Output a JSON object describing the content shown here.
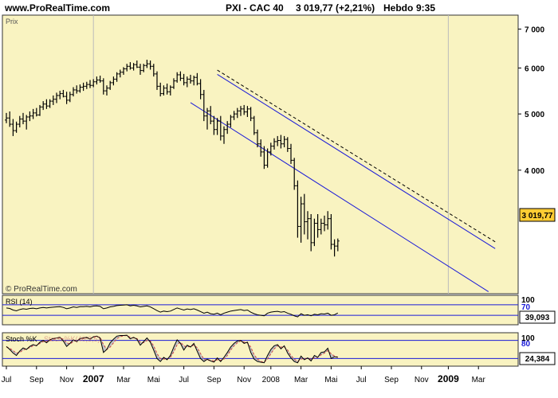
{
  "header": {
    "site": "www.ProRealTime.com",
    "instrument": "PXI - CAC 40",
    "last_change": "3 019,77 (+2,21%)",
    "period": "Hebdo",
    "time": "9:35"
  },
  "main_panel": {
    "label": "Prix",
    "watermark": "© ProRealTime.com",
    "price_tag": "3 019,77"
  },
  "rsi_panel": {
    "label": "RSI (14)",
    "level_high": "70",
    "top_tick": "100",
    "value_tag": "39,093"
  },
  "stoch_panel": {
    "label": "Stoch %K",
    "legend_faint": "Stoch %K(40,3,5)",
    "level_high": "80",
    "top_tick": "100",
    "value_tag": "24,384"
  },
  "colors": {
    "panel_bg": "#f9f3c1",
    "bar": "#000000",
    "channel": "#1a1ad8",
    "price_tag_bg": "#ffcc33",
    "stoch_k": "#000000",
    "stoch_d": "#cc4444",
    "stoch_fill": "#9aa8cc"
  },
  "chart_data": {
    "type": "ohlc-bar",
    "title": "PXI - CAC 40",
    "yscale": "log",
    "y_ticks": [
      "7 000",
      "6 000",
      "5 000",
      "4 000"
    ],
    "y_tick_values": [
      7000,
      6000,
      5000,
      4000
    ],
    "ylim": [
      2450,
      7400
    ],
    "x_ticks": [
      "Jul",
      "Sep",
      "Nov",
      "2007",
      "Mar",
      "Mai",
      "Jul",
      "Sep",
      "Nov",
      "2008",
      "Mar",
      "Mai",
      "Jul",
      "Sep",
      "Nov",
      "2009",
      "Mar"
    ],
    "x_tick_week": [
      0,
      9,
      18,
      26,
      35,
      44,
      53,
      62,
      71,
      79,
      88,
      97,
      106,
      115,
      124,
      132,
      141
    ],
    "x_major": [
      3,
      15
    ],
    "weeks_total": 147,
    "bars": [
      [
        4.88,
        5.02,
        4.82,
        4.92
      ],
      [
        4.92,
        5.05,
        4.75,
        4.8
      ],
      [
        4.8,
        4.9,
        4.58,
        4.68
      ],
      [
        4.68,
        4.85,
        4.64,
        4.8
      ],
      [
        4.8,
        4.96,
        4.74,
        4.9
      ],
      [
        4.9,
        5.02,
        4.8,
        4.86
      ],
      [
        4.86,
        4.98,
        4.7,
        4.94
      ],
      [
        4.94,
        5.05,
        4.86,
        4.96
      ],
      [
        4.96,
        5.1,
        4.9,
        5.02
      ],
      [
        5.02,
        5.12,
        4.95,
        4.98
      ],
      [
        4.98,
        5.18,
        4.96,
        5.14
      ],
      [
        5.14,
        5.26,
        5.08,
        5.2
      ],
      [
        5.2,
        5.3,
        5.1,
        5.16
      ],
      [
        5.16,
        5.3,
        5.12,
        5.26
      ],
      [
        5.26,
        5.38,
        5.18,
        5.3
      ],
      [
        5.3,
        5.44,
        5.22,
        5.38
      ],
      [
        5.38,
        5.48,
        5.3,
        5.42
      ],
      [
        5.42,
        5.5,
        5.34,
        5.36
      ],
      [
        5.36,
        5.46,
        5.2,
        5.28
      ],
      [
        5.28,
        5.46,
        5.24,
        5.4
      ],
      [
        5.4,
        5.56,
        5.36,
        5.5
      ],
      [
        5.5,
        5.6,
        5.42,
        5.48
      ],
      [
        5.48,
        5.62,
        5.44,
        5.56
      ],
      [
        5.56,
        5.66,
        5.48,
        5.58
      ],
      [
        5.58,
        5.68,
        5.52,
        5.62
      ],
      [
        5.62,
        5.72,
        5.54,
        5.6
      ],
      [
        5.6,
        5.74,
        5.56,
        5.68
      ],
      [
        5.68,
        5.8,
        5.62,
        5.72
      ],
      [
        5.72,
        5.82,
        5.66,
        5.7
      ],
      [
        5.7,
        5.76,
        5.4,
        5.48
      ],
      [
        5.48,
        5.6,
        5.38,
        5.54
      ],
      [
        5.54,
        5.7,
        5.5,
        5.66
      ],
      [
        5.66,
        5.8,
        5.6,
        5.74
      ],
      [
        5.74,
        5.9,
        5.68,
        5.86
      ],
      [
        5.86,
        5.96,
        5.78,
        5.9
      ],
      [
        5.9,
        6.02,
        5.84,
        5.98
      ],
      [
        5.98,
        6.1,
        5.92,
        6.04
      ],
      [
        6.04,
        6.14,
        5.96,
        6.0
      ],
      [
        6.0,
        6.12,
        5.94,
        6.08
      ],
      [
        6.08,
        6.18,
        6.0,
        6.02
      ],
      [
        6.02,
        6.1,
        5.84,
        5.94
      ],
      [
        5.94,
        6.1,
        5.9,
        6.06
      ],
      [
        6.06,
        6.2,
        6.0,
        6.1
      ],
      [
        6.1,
        6.18,
        5.96,
        6.04
      ],
      [
        6.04,
        6.1,
        5.8,
        5.86
      ],
      [
        5.86,
        5.92,
        5.5,
        5.58
      ],
      [
        5.58,
        5.66,
        5.36,
        5.42
      ],
      [
        5.42,
        5.6,
        5.38,
        5.54
      ],
      [
        5.54,
        5.64,
        5.4,
        5.46
      ],
      [
        5.46,
        5.6,
        5.38,
        5.56
      ],
      [
        5.56,
        5.76,
        5.52,
        5.7
      ],
      [
        5.7,
        5.9,
        5.66,
        5.84
      ],
      [
        5.84,
        5.92,
        5.7,
        5.76
      ],
      [
        5.76,
        5.86,
        5.6,
        5.66
      ],
      [
        5.66,
        5.8,
        5.56,
        5.74
      ],
      [
        5.74,
        5.84,
        5.64,
        5.7
      ],
      [
        5.7,
        5.82,
        5.6,
        5.78
      ],
      [
        5.78,
        5.88,
        5.6,
        5.64
      ],
      [
        5.64,
        5.74,
        5.3,
        5.4
      ],
      [
        5.4,
        5.5,
        4.86,
        4.96
      ],
      [
        4.96,
        5.12,
        4.7,
        5.06
      ],
      [
        5.06,
        5.16,
        4.8,
        4.86
      ],
      [
        4.86,
        4.96,
        4.6,
        4.7
      ],
      [
        4.7,
        4.92,
        4.6,
        4.86
      ],
      [
        4.86,
        4.96,
        4.5,
        4.58
      ],
      [
        4.58,
        4.76,
        4.44,
        4.7
      ],
      [
        4.7,
        4.86,
        4.62,
        4.8
      ],
      [
        4.8,
        4.98,
        4.74,
        4.94
      ],
      [
        4.94,
        5.06,
        4.88,
        5.0
      ],
      [
        5.0,
        5.12,
        4.92,
        5.06
      ],
      [
        5.06,
        5.16,
        4.96,
        5.1
      ],
      [
        5.1,
        5.18,
        4.98,
        5.04
      ],
      [
        5.04,
        5.16,
        4.94,
        5.1
      ],
      [
        5.1,
        5.14,
        4.86,
        4.92
      ],
      [
        4.92,
        4.96,
        4.6,
        4.64
      ],
      [
        4.64,
        4.7,
        4.38,
        4.44
      ],
      [
        4.44,
        4.52,
        4.22,
        4.3
      ],
      [
        4.3,
        4.4,
        4.02,
        4.08
      ],
      [
        4.08,
        4.36,
        4.04,
        4.3
      ],
      [
        4.3,
        4.46,
        4.24,
        4.4
      ],
      [
        4.4,
        4.54,
        4.34,
        4.48
      ],
      [
        4.48,
        4.58,
        4.4,
        4.5
      ],
      [
        4.5,
        4.6,
        4.36,
        4.44
      ],
      [
        4.44,
        4.58,
        4.38,
        4.52
      ],
      [
        4.52,
        4.56,
        4.3,
        4.36
      ],
      [
        4.36,
        4.44,
        4.1,
        4.16
      ],
      [
        4.16,
        4.2,
        3.7,
        3.76
      ],
      [
        3.76,
        3.84,
        3.06,
        3.2
      ],
      [
        3.2,
        3.6,
        3.0,
        3.5
      ],
      [
        3.5,
        3.64,
        3.1,
        3.26
      ],
      [
        3.26,
        3.4,
        3.04,
        3.3
      ],
      [
        3.3,
        3.36,
        2.9,
        3.0
      ],
      [
        3.0,
        3.3,
        2.96,
        3.24
      ],
      [
        3.24,
        3.36,
        3.06,
        3.16
      ],
      [
        3.16,
        3.3,
        3.1,
        3.24
      ],
      [
        3.24,
        3.34,
        3.14,
        3.22
      ],
      [
        3.22,
        3.4,
        3.16,
        3.3
      ],
      [
        3.3,
        3.36,
        2.92,
        2.98
      ],
      [
        2.98,
        3.04,
        2.84,
        2.96
      ],
      [
        2.96,
        3.05,
        2.9,
        3.02
      ]
    ],
    "bars_start_week": 0,
    "bars_scale": 1000,
    "channel": {
      "upper_solid": [
        [
          63,
          5850
        ],
        [
          146,
          2930
        ]
      ],
      "lower_solid": [
        [
          55,
          5230
        ],
        [
          144,
          2470
        ]
      ],
      "upper_dashed": [
        [
          63,
          5950
        ],
        [
          146,
          3010
        ]
      ]
    },
    "rsi": {
      "ylim": [
        0,
        100
      ],
      "levels": [
        30,
        70
      ],
      "values": [
        58,
        56,
        50,
        47,
        52,
        55,
        53,
        56,
        57,
        55,
        58,
        60,
        58,
        60,
        61,
        62,
        63,
        60,
        55,
        58,
        62,
        60,
        63,
        63,
        64,
        62,
        65,
        66,
        64,
        55,
        58,
        62,
        64,
        67,
        68,
        69,
        70,
        66,
        68,
        66,
        62,
        64,
        66,
        62,
        55,
        48,
        42,
        46,
        44,
        46,
        52,
        58,
        54,
        50,
        54,
        52,
        55,
        50,
        44,
        38,
        42,
        36,
        34,
        38,
        32,
        38,
        42,
        46,
        48,
        50,
        52,
        48,
        50,
        42,
        36,
        32,
        30,
        28,
        38,
        42,
        44,
        45,
        42,
        44,
        38,
        34,
        28,
        24,
        36,
        30,
        32,
        28,
        34,
        32,
        36,
        35,
        38,
        30,
        32,
        39
      ]
    },
    "stoch": {
      "ylim": [
        0,
        100
      ],
      "levels": [
        20,
        80
      ],
      "k": [
        60,
        50,
        38,
        30,
        45,
        55,
        50,
        60,
        66,
        62,
        74,
        80,
        72,
        82,
        86,
        88,
        90,
        78,
        60,
        70,
        82,
        76,
        86,
        88,
        90,
        84,
        92,
        94,
        88,
        40,
        50,
        72,
        84,
        94,
        96,
        96,
        97,
        85,
        90,
        84,
        64,
        76,
        88,
        74,
        48,
        20,
        10,
        24,
        16,
        30,
        58,
        82,
        70,
        48,
        64,
        58,
        70,
        44,
        20,
        10,
        18,
        12,
        8,
        22,
        10,
        24,
        40,
        58,
        70,
        78,
        80,
        70,
        74,
        40,
        18,
        10,
        8,
        6,
        30,
        50,
        62,
        66,
        52,
        62,
        38,
        22,
        10,
        6,
        28,
        16,
        22,
        12,
        30,
        24,
        40,
        42,
        54,
        20,
        26,
        24
      ],
      "d": [
        58,
        54,
        46,
        38,
        40,
        48,
        52,
        56,
        62,
        64,
        70,
        76,
        76,
        80,
        84,
        86,
        88,
        84,
        72,
        68,
        76,
        80,
        84,
        86,
        88,
        86,
        90,
        92,
        90,
        66,
        50,
        58,
        72,
        86,
        92,
        95,
        96,
        90,
        88,
        86,
        74,
        72,
        80,
        78,
        62,
        36,
        20,
        18,
        18,
        24,
        42,
        66,
        74,
        62,
        58,
        60,
        64,
        56,
        36,
        18,
        14,
        14,
        12,
        16,
        14,
        18,
        30,
        48,
        62,
        72,
        78,
        74,
        72,
        58,
        32,
        18,
        10,
        8,
        18,
        36,
        52,
        62,
        58,
        58,
        48,
        30,
        18,
        10,
        18,
        20,
        20,
        18,
        22,
        24,
        32,
        38,
        46,
        36,
        28,
        25
      ]
    }
  }
}
